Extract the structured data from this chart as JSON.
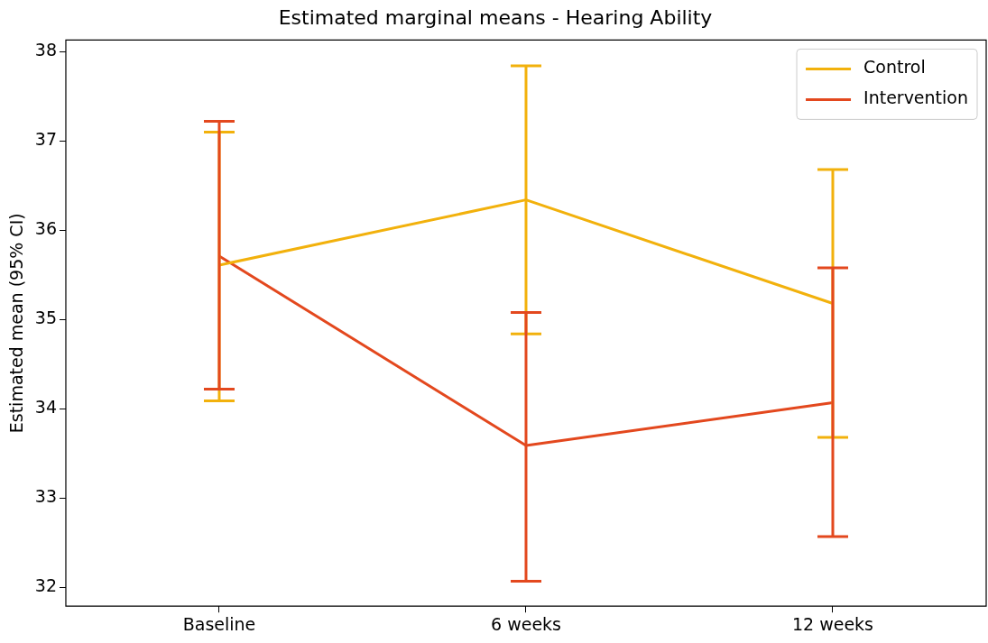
{
  "chart_data": {
    "type": "line",
    "title": "Estimated marginal means - Hearing Ability",
    "ylabel": "Estimated mean (95% CI)",
    "categories": [
      "Baseline",
      "6 weeks",
      "12 weeks"
    ],
    "series": [
      {
        "name": "Control",
        "color": "#f2b10c",
        "values": [
          35.61,
          36.34,
          35.18
        ],
        "errors": [
          [
            34.09,
            37.1
          ],
          [
            34.84,
            37.84
          ],
          [
            33.68,
            36.68
          ]
        ]
      },
      {
        "name": "Intervention",
        "color": "#e3481e",
        "values": [
          35.71,
          33.59,
          34.07
        ],
        "errors": [
          [
            34.22,
            37.22
          ],
          [
            32.07,
            35.08
          ],
          [
            32.57,
            35.58
          ]
        ]
      }
    ],
    "ylim": [
      31.79,
      38.13
    ],
    "yticks": [
      32,
      33,
      34,
      35,
      36,
      37,
      38
    ],
    "grid": false,
    "legend": "top right",
    "marker": "none",
    "line_style": "solid"
  }
}
